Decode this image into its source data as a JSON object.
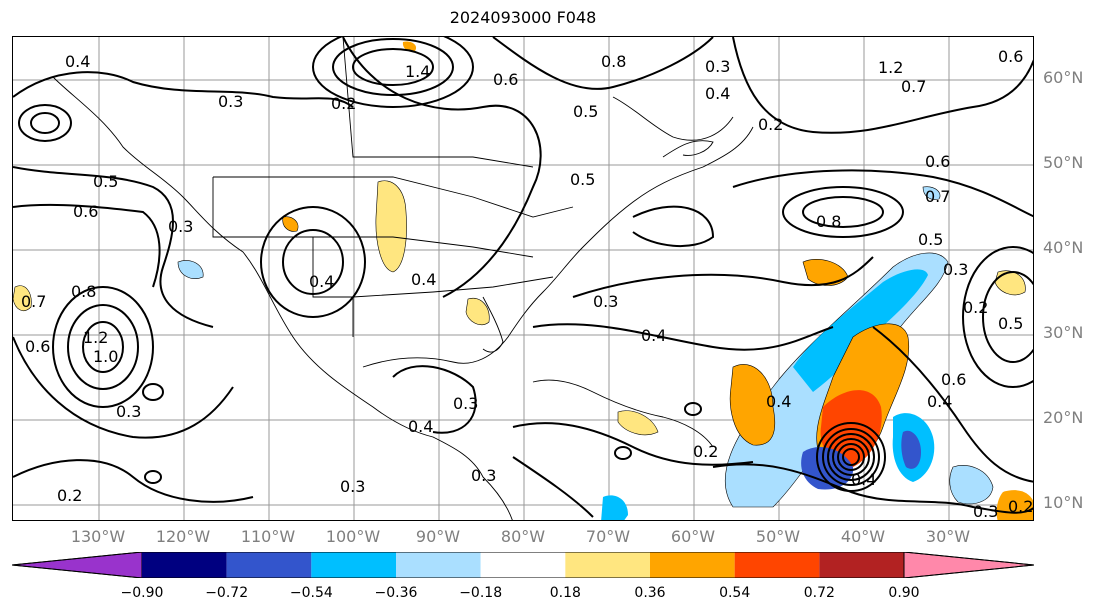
{
  "title": "2024093000 F048",
  "lat_labels": [
    "60°N",
    "50°N",
    "40°N",
    "30°N",
    "20°N",
    "10°N"
  ],
  "lon_labels": [
    "130°W",
    "120°W",
    "110°W",
    "100°W",
    "90°W",
    "80°W",
    "70°W",
    "60°W",
    "50°W",
    "40°W",
    "30°W"
  ],
  "contour_labels": [
    "0.4",
    "0.3",
    "0.2",
    "1.4",
    "0.8",
    "0.6",
    "0.3",
    "0.4",
    "1.2",
    "0.7",
    "0.6",
    "0.5",
    "0.5",
    "0.6",
    "0.3",
    "0.4",
    "0.4",
    "0.5",
    "0.6",
    "0.8",
    "0.7",
    "0.5",
    "0.3",
    "0.2",
    "0.5",
    "0.4",
    "1.2",
    "1.0",
    "0.8",
    "0.6",
    "0.7",
    "0.4",
    "0.3",
    "0.4",
    "0.3",
    "0.2",
    "0.3",
    "0.2",
    "0.3",
    "0.3",
    "0.4",
    "0.6",
    "0.4",
    "0.2",
    "0.3",
    "0.2"
  ],
  "colorbar": {
    "ticks": [
      "−0.90",
      "−0.72",
      "−0.54",
      "−0.36",
      "−0.18",
      "0.18",
      "0.36",
      "0.54",
      "0.72",
      "0.90"
    ],
    "colors": [
      "#9933cc",
      "#000080",
      "#3355cc",
      "#00bfff",
      "#aadfff",
      "#ffffff",
      "#ffe680",
      "#ffa500",
      "#ff4500",
      "#b22222",
      "#ff88aa"
    ]
  }
}
